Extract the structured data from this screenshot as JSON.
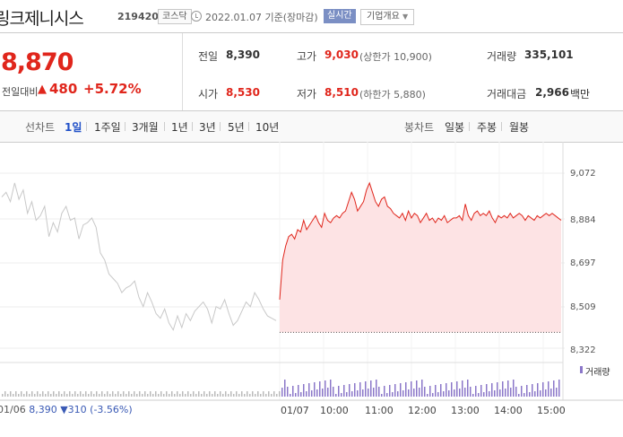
{
  "header": {
    "title": "링크제니시스",
    "code": "219420",
    "market": "코스닥",
    "date": "2022.01.07",
    "basis": "기준(장마감)",
    "realtime_label": "실시간",
    "overview_label": "기업개요"
  },
  "price": {
    "current": "8,870",
    "change_label": "전일대비",
    "change_value": "480",
    "change_rate": "+5.72%",
    "direction": "up"
  },
  "stats": {
    "prev_close": {
      "label": "전일",
      "value": "8,390"
    },
    "high": {
      "label": "고가",
      "value": "9,030",
      "note": "(상한가 10,900)"
    },
    "volume": {
      "label": "거래량",
      "value": "335,101"
    },
    "open": {
      "label": "시가",
      "value": "8,530"
    },
    "low": {
      "label": "저가",
      "value": "8,510",
      "note": "(하한가 5,880)"
    },
    "amount": {
      "label": "거래대금",
      "value": "2,966",
      "unit": "백만"
    }
  },
  "tabs": {
    "line_header": "선차트",
    "periods": [
      "1일",
      "1주일",
      "3개월",
      "1년",
      "3년",
      "5년",
      "10년"
    ],
    "selected": "1일",
    "candle_header": "봉차트",
    "candle_periods": [
      "일봉",
      "주봉",
      "월봉"
    ]
  },
  "colors": {
    "up": "#e0261c",
    "down": "#2151c8",
    "selected_tab": "#2151c8",
    "prev_day_line": "#c8c8c8",
    "area_fill": "#fde3e4",
    "volume_bar": "#8b77c9"
  },
  "chart_data": {
    "type": "line",
    "y_ticks": [
      "9,072",
      "8,884",
      "8,697",
      "8,509",
      "8,322"
    ],
    "ylim": [
      8322,
      9072
    ],
    "baseline": 8390,
    "x_ticks": [
      "01/07",
      "10:00",
      "11:00",
      "12:00",
      "13:00",
      "14:00",
      "15:00"
    ],
    "legend": "거래량",
    "prev_day": {
      "label": "01/06",
      "close": "8,390",
      "change_arrow": "▼",
      "change": "310",
      "rate": "(-3.56%)",
      "values": [
        8970,
        8990,
        8950,
        9030,
        8960,
        9000,
        8900,
        8950,
        8870,
        8890,
        8930,
        8800,
        8860,
        8820,
        8900,
        8930,
        8870,
        8880,
        8790,
        8850,
        8860,
        8880,
        8840,
        8730,
        8700,
        8640,
        8620,
        8600,
        8560,
        8580,
        8590,
        8610,
        8540,
        8500,
        8560,
        8520,
        8470,
        8450,
        8490,
        8430,
        8400,
        8460,
        8410,
        8470,
        8440,
        8480,
        8500,
        8520,
        8490,
        8430,
        8500,
        8490,
        8530,
        8470,
        8420,
        8440,
        8480,
        8520,
        8500,
        8560,
        8530,
        8490,
        8460,
        8450,
        8440
      ]
    },
    "today": {
      "values": [
        8530,
        8700,
        8760,
        8800,
        8810,
        8790,
        8830,
        8820,
        8870,
        8830,
        8850,
        8870,
        8890,
        8860,
        8840,
        8900,
        8870,
        8860,
        8880,
        8890,
        8880,
        8900,
        8910,
        8950,
        8990,
        8960,
        8910,
        8930,
        8950,
        9000,
        9030,
        8990,
        8950,
        8930,
        8960,
        8970,
        8930,
        8920,
        8900,
        8890,
        8880,
        8900,
        8870,
        8910,
        8880,
        8900,
        8890,
        8860,
        8880,
        8900,
        8870,
        8880,
        8860,
        8880,
        8870,
        8890,
        8860,
        8870,
        8880,
        8880,
        8890,
        8870,
        8940,
        8890,
        8870,
        8900,
        8910,
        8890,
        8900,
        8890,
        8910,
        8880,
        8860,
        8890,
        8880,
        8890,
        8880,
        8900,
        8880,
        8890,
        8900,
        8890,
        8870,
        8890,
        8880,
        8870,
        8890,
        8880,
        8890,
        8900,
        8890,
        8900,
        8890,
        8880,
        8870
      ]
    }
  }
}
